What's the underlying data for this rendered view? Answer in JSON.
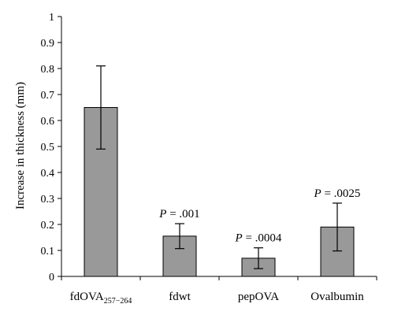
{
  "chart_data": {
    "type": "bar",
    "ylabel": "Increase in thickness (mm)",
    "xlabel": "",
    "ylim": [
      0,
      1
    ],
    "yticks": [
      "0",
      "0.1",
      "0.2",
      "0.3",
      "0.4",
      "0.5",
      "0.6",
      "0.7",
      "0.8",
      "0.9",
      "1"
    ],
    "categories": [
      {
        "main": "fdOVA",
        "sub": "257−264"
      },
      {
        "main": "fdwt",
        "sub": ""
      },
      {
        "main": "pepOVA",
        "sub": ""
      },
      {
        "main": "Ovalbumin",
        "sub": ""
      }
    ],
    "values": [
      0.65,
      0.155,
      0.07,
      0.19
    ],
    "errors": [
      0.16,
      0.048,
      0.04,
      0.092
    ],
    "annotations": [
      {
        "p": "P",
        "text": " = .001",
        "category_index": 1
      },
      {
        "p": "P",
        "text": " = .0004",
        "category_index": 2
      },
      {
        "p": "P",
        "text": " = .0025",
        "category_index": 3
      }
    ],
    "colors": {
      "bar_fill": "#999999",
      "bar_stroke": "#000000"
    },
    "grid": false,
    "legend": "none"
  }
}
